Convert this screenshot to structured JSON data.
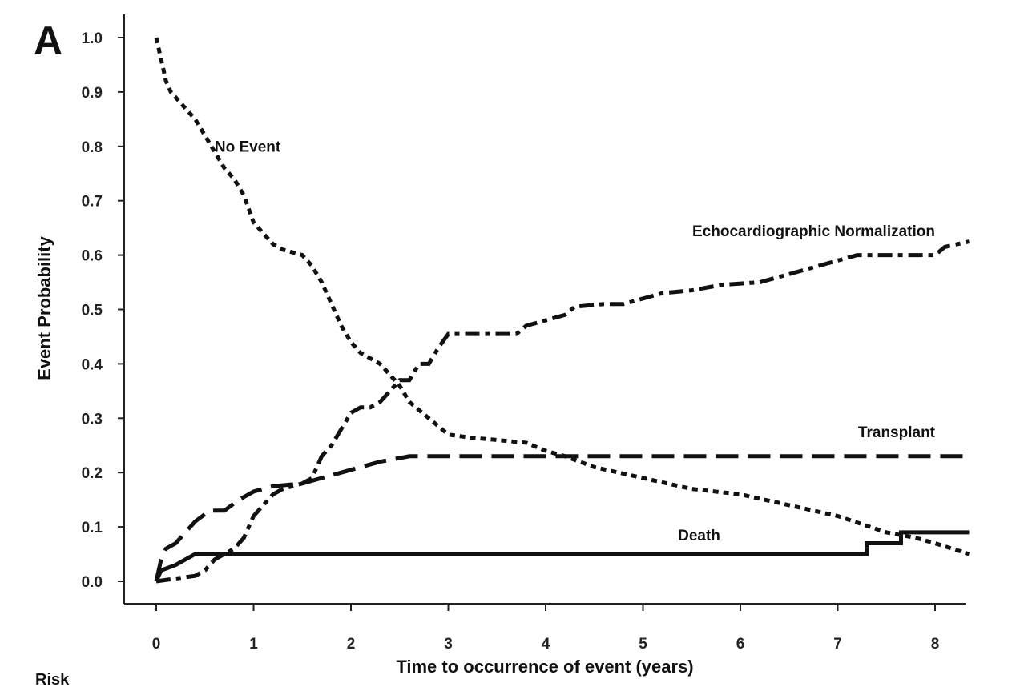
{
  "chart_data": {
    "type": "line",
    "panel_label": "A",
    "xlabel": "Time to occurrence of event (years)",
    "ylabel": "Event Probability",
    "xlim": [
      -0.3,
      8.35
    ],
    "ylim": [
      -0.04,
      1.04
    ],
    "x_ticks": [
      "0",
      "1",
      "2",
      "3",
      "4",
      "5",
      "6",
      "7",
      "8"
    ],
    "y_ticks": [
      "0.0",
      "0.1",
      "0.2",
      "0.3",
      "0.4",
      "0.5",
      "0.6",
      "0.7",
      "0.8",
      "0.9",
      "1.0"
    ],
    "x_tick_values": [
      0,
      1,
      2,
      3,
      4,
      5,
      6,
      7,
      8
    ],
    "y_tick_values": [
      0,
      0.1,
      0.2,
      0.3,
      0.4,
      0.5,
      0.6,
      0.7,
      0.8,
      0.9,
      1.0
    ],
    "risk_label": "Risk",
    "series": [
      {
        "name": "No Event",
        "style": "dotted",
        "label_at": {
          "x": 0.6,
          "y": 0.79
        },
        "points": [
          [
            0,
            1.0
          ],
          [
            0.05,
            0.96
          ],
          [
            0.1,
            0.92
          ],
          [
            0.15,
            0.9
          ],
          [
            0.2,
            0.89
          ],
          [
            0.3,
            0.87
          ],
          [
            0.4,
            0.85
          ],
          [
            0.5,
            0.82
          ],
          [
            0.6,
            0.79
          ],
          [
            0.7,
            0.76
          ],
          [
            0.8,
            0.74
          ],
          [
            0.9,
            0.71
          ],
          [
            1.0,
            0.66
          ],
          [
            1.1,
            0.64
          ],
          [
            1.2,
            0.62
          ],
          [
            1.3,
            0.61
          ],
          [
            1.5,
            0.6
          ],
          [
            1.6,
            0.58
          ],
          [
            1.7,
            0.55
          ],
          [
            1.8,
            0.51
          ],
          [
            1.9,
            0.47
          ],
          [
            2.0,
            0.44
          ],
          [
            2.1,
            0.42
          ],
          [
            2.3,
            0.4
          ],
          [
            2.5,
            0.36
          ],
          [
            2.6,
            0.33
          ],
          [
            2.8,
            0.3
          ],
          [
            3.0,
            0.27
          ],
          [
            3.2,
            0.265
          ],
          [
            3.5,
            0.26
          ],
          [
            3.8,
            0.255
          ],
          [
            4.0,
            0.24
          ],
          [
            4.2,
            0.23
          ],
          [
            4.5,
            0.21
          ],
          [
            5.0,
            0.19
          ],
          [
            5.5,
            0.17
          ],
          [
            6.0,
            0.16
          ],
          [
            6.5,
            0.14
          ],
          [
            7.0,
            0.12
          ],
          [
            7.5,
            0.09
          ],
          [
            7.8,
            0.08
          ],
          [
            8.0,
            0.07
          ],
          [
            8.35,
            0.05
          ]
        ]
      },
      {
        "name": "Echocardiographic Normalization",
        "style": "dash-dot",
        "label_at": {
          "x": 8.0,
          "y": 0.635
        },
        "points": [
          [
            0,
            0
          ],
          [
            0.2,
            0.005
          ],
          [
            0.4,
            0.01
          ],
          [
            0.5,
            0.02
          ],
          [
            0.6,
            0.04
          ],
          [
            0.8,
            0.06
          ],
          [
            0.9,
            0.08
          ],
          [
            1.0,
            0.12
          ],
          [
            1.1,
            0.14
          ],
          [
            1.2,
            0.16
          ],
          [
            1.3,
            0.17
          ],
          [
            1.4,
            0.175
          ],
          [
            1.5,
            0.18
          ],
          [
            1.6,
            0.19
          ],
          [
            1.7,
            0.23
          ],
          [
            1.8,
            0.25
          ],
          [
            1.9,
            0.28
          ],
          [
            2.0,
            0.31
          ],
          [
            2.1,
            0.32
          ],
          [
            2.2,
            0.32
          ],
          [
            2.3,
            0.33
          ],
          [
            2.4,
            0.35
          ],
          [
            2.5,
            0.37
          ],
          [
            2.6,
            0.37
          ],
          [
            2.7,
            0.4
          ],
          [
            2.8,
            0.4
          ],
          [
            2.9,
            0.43
          ],
          [
            3.0,
            0.455
          ],
          [
            3.2,
            0.455
          ],
          [
            3.5,
            0.455
          ],
          [
            3.7,
            0.455
          ],
          [
            3.8,
            0.47
          ],
          [
            4.0,
            0.48
          ],
          [
            4.2,
            0.49
          ],
          [
            4.3,
            0.505
          ],
          [
            4.6,
            0.51
          ],
          [
            4.8,
            0.51
          ],
          [
            5.0,
            0.52
          ],
          [
            5.2,
            0.53
          ],
          [
            5.5,
            0.535
          ],
          [
            5.8,
            0.545
          ],
          [
            6.2,
            0.55
          ],
          [
            6.5,
            0.565
          ],
          [
            6.8,
            0.58
          ],
          [
            7.0,
            0.59
          ],
          [
            7.2,
            0.6
          ],
          [
            7.6,
            0.6
          ],
          [
            8.0,
            0.6
          ],
          [
            8.1,
            0.615
          ],
          [
            8.35,
            0.625
          ]
        ]
      },
      {
        "name": "Transplant",
        "style": "dashed",
        "label_at": {
          "x": 8.0,
          "y": 0.265
        },
        "points": [
          [
            0,
            0
          ],
          [
            0.05,
            0.04
          ],
          [
            0.1,
            0.06
          ],
          [
            0.2,
            0.07
          ],
          [
            0.3,
            0.09
          ],
          [
            0.4,
            0.11
          ],
          [
            0.55,
            0.13
          ],
          [
            0.7,
            0.13
          ],
          [
            0.85,
            0.15
          ],
          [
            1.0,
            0.165
          ],
          [
            1.2,
            0.175
          ],
          [
            1.5,
            0.18
          ],
          [
            1.7,
            0.19
          ],
          [
            1.9,
            0.2
          ],
          [
            2.1,
            0.21
          ],
          [
            2.3,
            0.22
          ],
          [
            2.6,
            0.23
          ],
          [
            3.0,
            0.23
          ],
          [
            4.0,
            0.23
          ],
          [
            5.0,
            0.23
          ],
          [
            6.0,
            0.23
          ],
          [
            7.0,
            0.23
          ],
          [
            8.35,
            0.23
          ]
        ]
      },
      {
        "name": "Death",
        "style": "solid",
        "label_at": {
          "x": 5.4,
          "y": 0.075
        },
        "points": [
          [
            0,
            0
          ],
          [
            0.05,
            0.02
          ],
          [
            0.2,
            0.03
          ],
          [
            0.3,
            0.04
          ],
          [
            0.4,
            0.05
          ],
          [
            1.0,
            0.05
          ],
          [
            2.0,
            0.05
          ],
          [
            3.0,
            0.05
          ],
          [
            4.0,
            0.05
          ],
          [
            5.0,
            0.05
          ],
          [
            6.0,
            0.05
          ],
          [
            7.0,
            0.05
          ],
          [
            7.3,
            0.05
          ],
          [
            7.3,
            0.07
          ],
          [
            7.65,
            0.07
          ],
          [
            7.65,
            0.09
          ],
          [
            8.35,
            0.09
          ]
        ]
      }
    ]
  }
}
